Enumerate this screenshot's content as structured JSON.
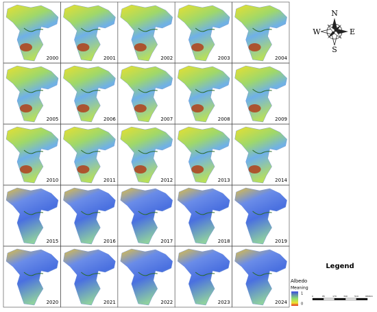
{
  "panels": [
    {
      "year": "2000"
    },
    {
      "year": "2001"
    },
    {
      "year": "2002"
    },
    {
      "year": "2003"
    },
    {
      "year": "2004"
    },
    {
      "year": "2005"
    },
    {
      "year": "2006"
    },
    {
      "year": "2007"
    },
    {
      "year": "2008"
    },
    {
      "year": "2009"
    },
    {
      "year": "2010"
    },
    {
      "year": "2011"
    },
    {
      "year": "2012"
    },
    {
      "year": "2013"
    },
    {
      "year": "2014"
    },
    {
      "year": "2015"
    },
    {
      "year": "2016"
    },
    {
      "year": "2017"
    },
    {
      "year": "2018"
    },
    {
      "year": "2019"
    },
    {
      "year": "2020"
    },
    {
      "year": "2021"
    },
    {
      "year": "2022"
    },
    {
      "year": "2023"
    },
    {
      "year": "2024"
    }
  ],
  "compass": {
    "n": "N",
    "e": "E",
    "s": "S",
    "w": "W"
  },
  "legend": {
    "title": "Legend",
    "layer": "Albedo",
    "field": "Meaning",
    "high": "1",
    "low": "0"
  },
  "scale_bar": {
    "labels": [
      "0",
      "85",
      "170",
      "340",
      "510",
      "680"
    ],
    "unit": "Km"
  }
}
